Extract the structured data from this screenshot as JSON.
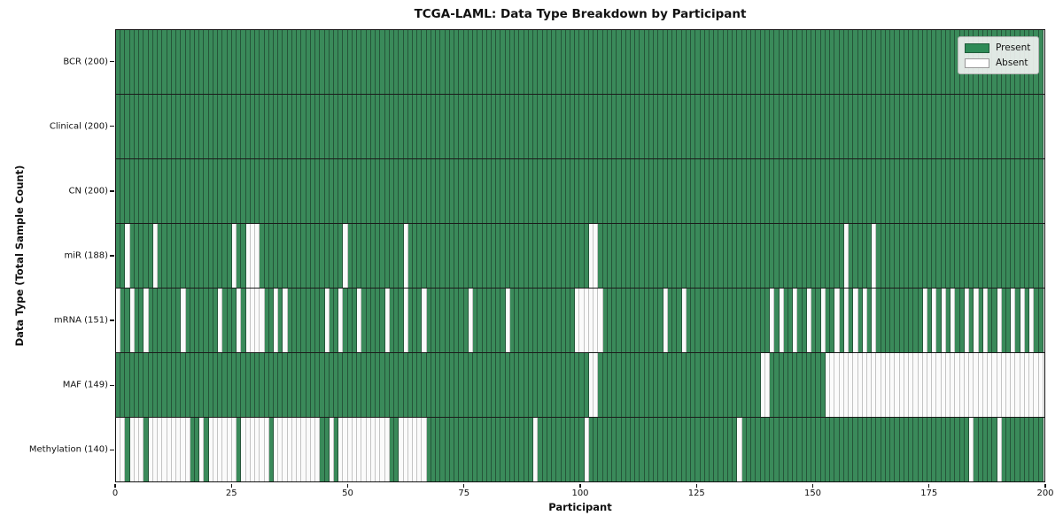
{
  "chart_data": {
    "type": "heatmap",
    "title": "TCGA-LAML: Data Type Breakdown by Participant",
    "xlabel": "Participant",
    "ylabel": "Data Type (Total Sample Count)",
    "n_participants": 200,
    "x_range": [
      0,
      200
    ],
    "x_ticks": [
      0,
      25,
      50,
      75,
      100,
      125,
      150,
      175,
      200
    ],
    "legend": {
      "position": "upper right",
      "present_label": "Present",
      "absent_label": "Absent"
    },
    "colors": {
      "present_fill": "#3a8a5a",
      "present_edge": "#255539",
      "absent_fill": "#fbfbfb",
      "absent_edge": "#c4c4c4",
      "legend_present": "#2e8b57",
      "row_separator": "#1b1b1b"
    },
    "rows": [
      {
        "name": "BCR",
        "label": "BCR (200)",
        "present_count": 200,
        "absent": []
      },
      {
        "name": "Clinical",
        "label": "Clinical (200)",
        "present_count": 200,
        "absent": []
      },
      {
        "name": "CN",
        "label": "CN (200)",
        "present_count": 200,
        "absent": []
      },
      {
        "name": "miR",
        "label": "miR (188)",
        "present_count": 188,
        "absent": [
          2,
          8,
          25,
          28,
          29,
          30,
          49,
          62,
          102,
          103,
          157,
          163
        ]
      },
      {
        "name": "mRNA",
        "label": "mRNA (151)",
        "present_count": 151,
        "absent": [
          0,
          3,
          6,
          14,
          22,
          26,
          28,
          29,
          30,
          31,
          34,
          36,
          45,
          48,
          52,
          58,
          62,
          66,
          76,
          84,
          99,
          100,
          101,
          102,
          103,
          104,
          118,
          122,
          141,
          143,
          146,
          149,
          152,
          155,
          157,
          159,
          161,
          163,
          174,
          176,
          178,
          180,
          183,
          185,
          187,
          190,
          193,
          195,
          197
        ]
      },
      {
        "name": "MAF",
        "label": "MAF (149)",
        "present_count": 149,
        "absent": [
          102,
          103,
          139,
          140,
          153,
          154,
          155,
          156,
          157,
          158,
          159,
          160,
          161,
          162,
          163,
          164,
          165,
          166,
          167,
          168,
          169,
          170,
          171,
          172,
          173,
          174,
          175,
          176,
          177,
          178,
          179,
          180,
          181,
          182,
          183,
          184,
          185,
          186,
          187,
          188,
          189,
          190,
          191,
          192,
          193,
          194,
          195,
          196,
          197,
          198,
          199
        ]
      },
      {
        "name": "Methylation",
        "label": "Methylation (140)",
        "present_count": 140,
        "absent": [
          0,
          1,
          3,
          4,
          5,
          7,
          8,
          9,
          10,
          11,
          12,
          13,
          14,
          15,
          18,
          20,
          21,
          22,
          23,
          24,
          25,
          27,
          28,
          29,
          30,
          31,
          32,
          34,
          35,
          36,
          37,
          38,
          39,
          40,
          41,
          42,
          43,
          46,
          48,
          49,
          50,
          51,
          52,
          53,
          54,
          55,
          56,
          57,
          58,
          61,
          62,
          63,
          64,
          65,
          66,
          90,
          101,
          134,
          184,
          190
        ]
      }
    ]
  }
}
